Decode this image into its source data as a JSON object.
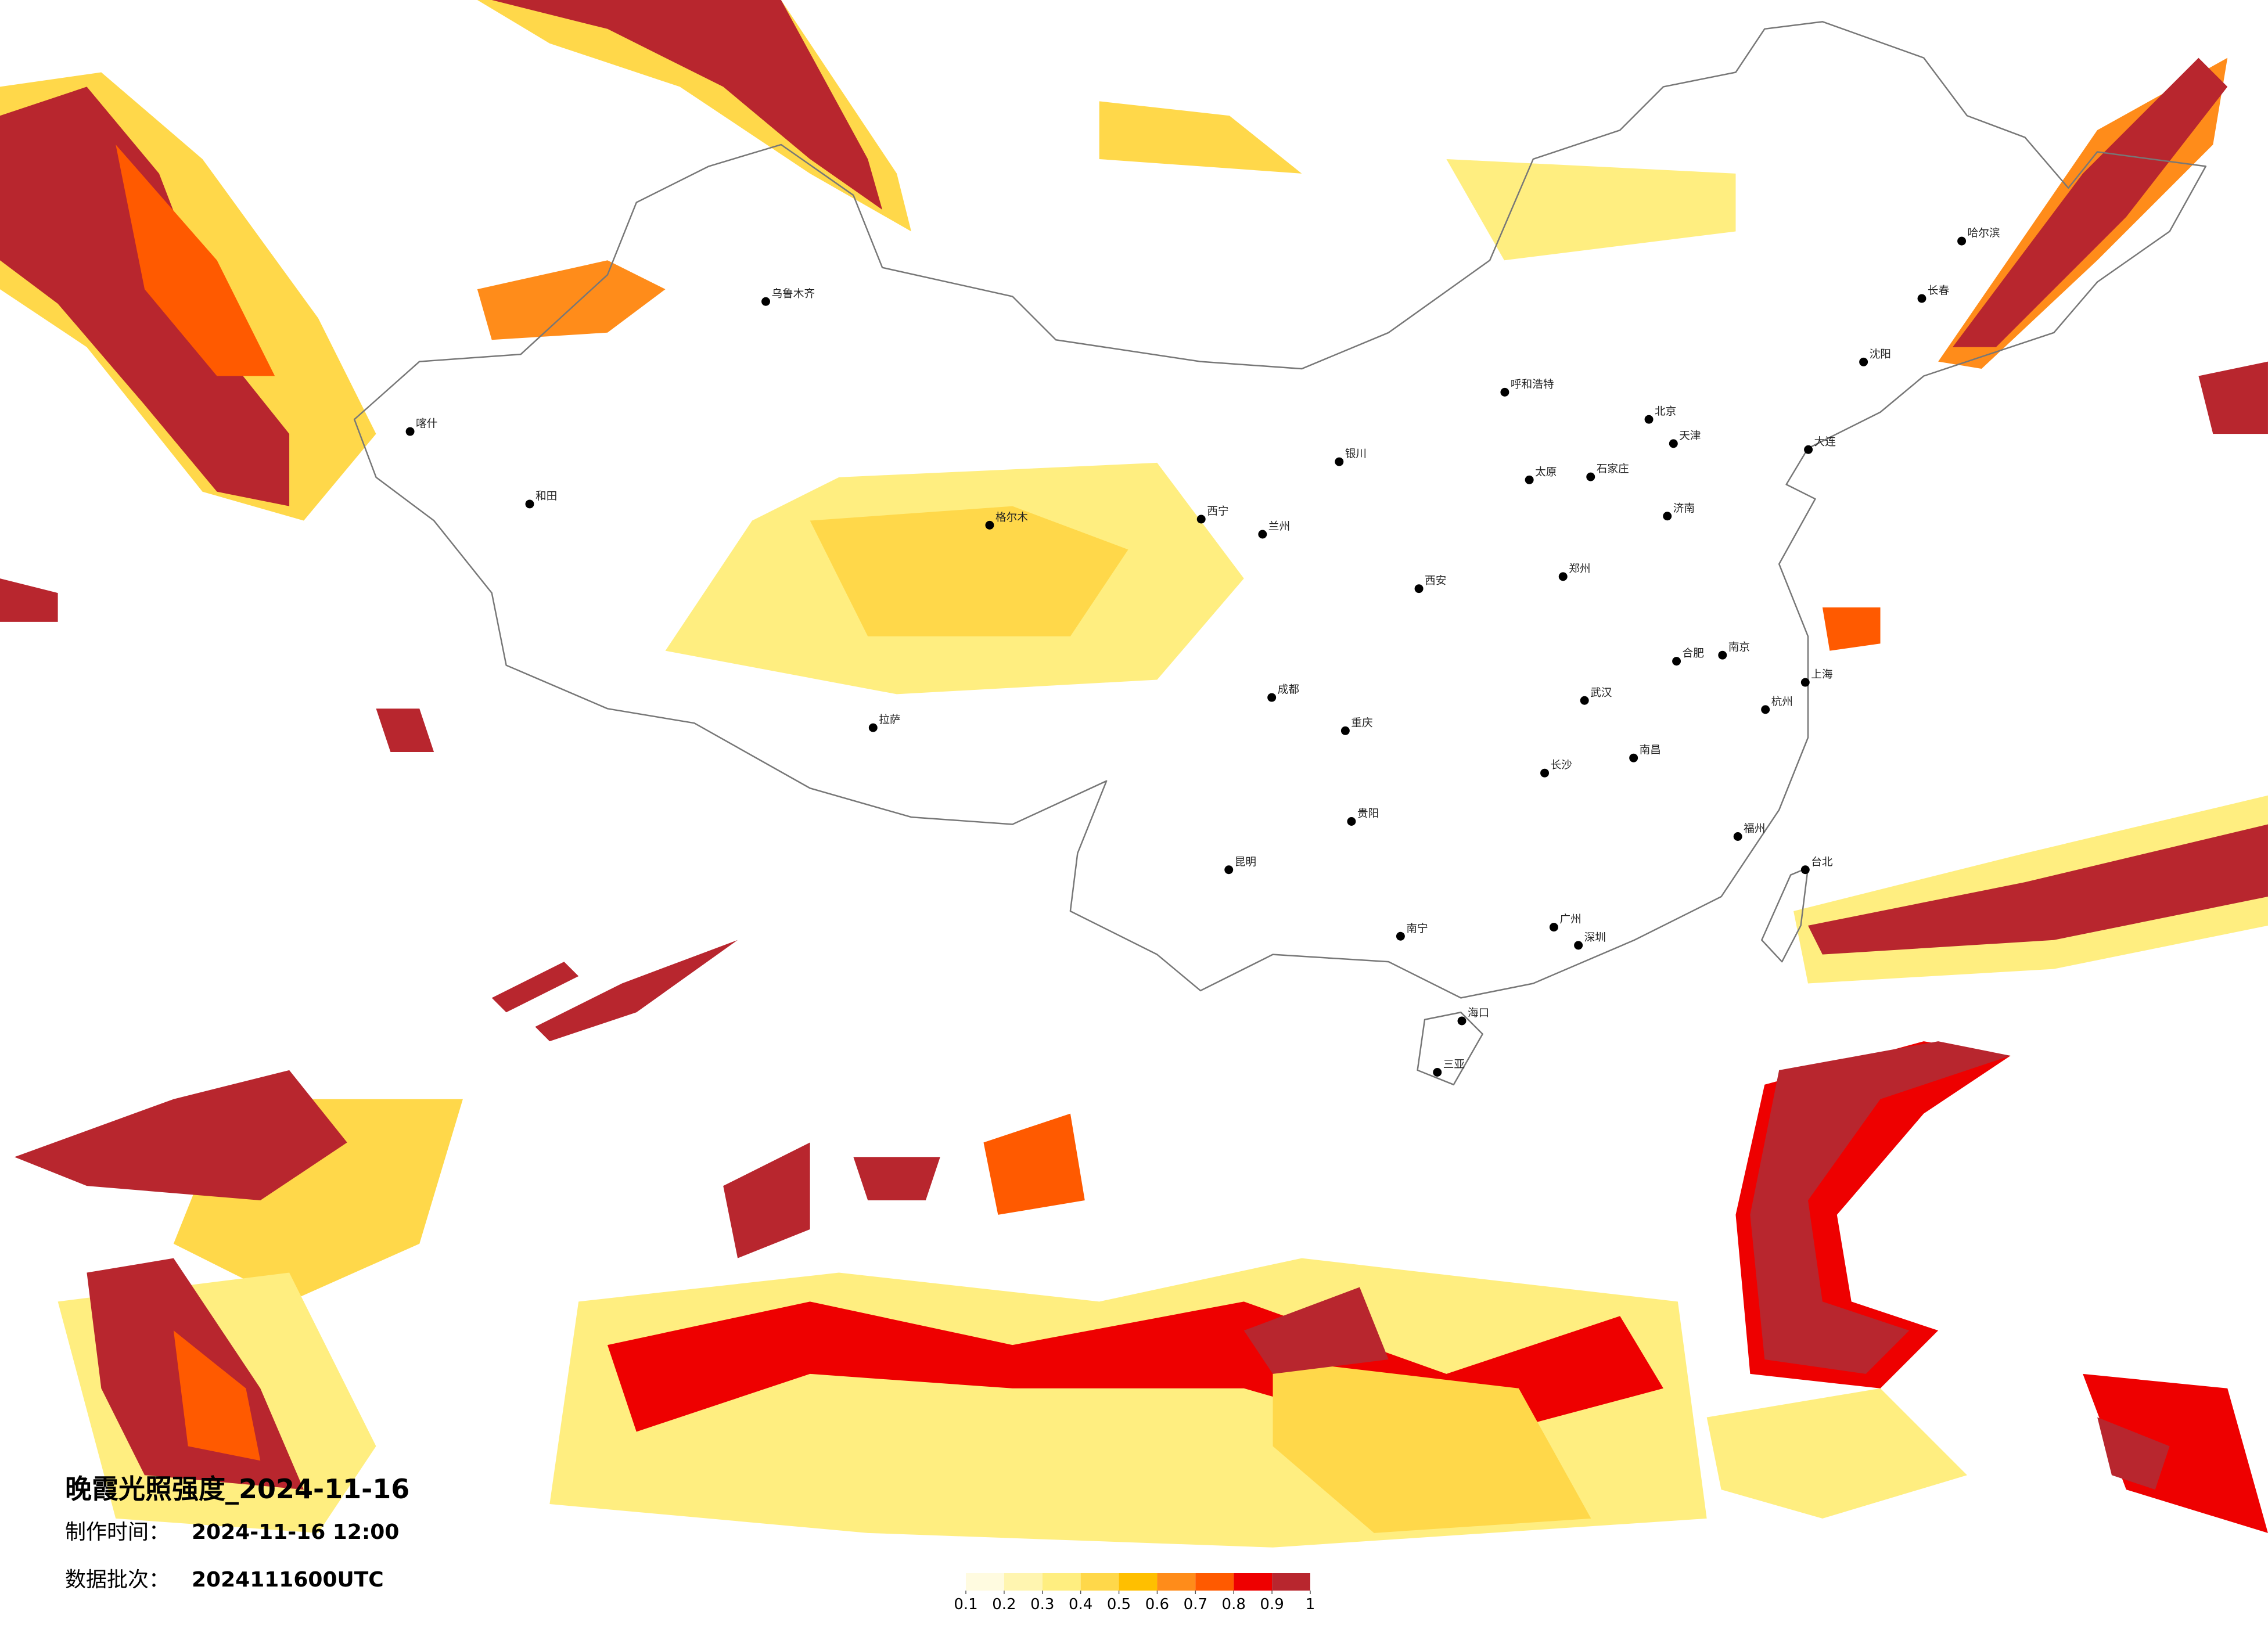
{
  "title": "晚霞光照强度_2024-11-16",
  "info": [
    {
      "label": "制作时间：",
      "value": "2024-11-16 12:00"
    },
    {
      "label": "数据批次：",
      "value": "2024111600UTC"
    }
  ],
  "colorbar": {
    "ticks": [
      0.1,
      0.2,
      0.3,
      0.4,
      0.5,
      0.6,
      0.7,
      0.8,
      0.9,
      1
    ],
    "colors": [
      "#fffbe0",
      "#fff5b0",
      "#ffee80",
      "#ffd84a",
      "#ffbf00",
      "#ff8c1a",
      "#ff5a00",
      "#ee0000",
      "#b8262e"
    ]
  },
  "cities": [
    {
      "name": "北京",
      "lon": 116.4,
      "lat": 39.9
    },
    {
      "name": "天津",
      "lon": 117.2,
      "lat": 39.1
    },
    {
      "name": "上海",
      "lon": 121.5,
      "lat": 31.2
    },
    {
      "name": "重庆",
      "lon": 106.5,
      "lat": 29.6
    },
    {
      "name": "广州",
      "lon": 113.3,
      "lat": 23.1
    },
    {
      "name": "深圳",
      "lon": 114.1,
      "lat": 22.5
    },
    {
      "name": "武汉",
      "lon": 114.3,
      "lat": 30.6
    },
    {
      "name": "成都",
      "lon": 104.1,
      "lat": 30.7
    },
    {
      "name": "西安",
      "lon": 108.9,
      "lat": 34.3
    },
    {
      "name": "南京",
      "lon": 118.8,
      "lat": 32.1
    },
    {
      "name": "杭州",
      "lon": 120.2,
      "lat": 30.3
    },
    {
      "name": "长沙",
      "lon": 113.0,
      "lat": 28.2
    },
    {
      "name": "郑州",
      "lon": 113.6,
      "lat": 34.7
    },
    {
      "name": "济南",
      "lon": 117.0,
      "lat": 36.7
    },
    {
      "name": "沈阳",
      "lon": 123.4,
      "lat": 41.8
    },
    {
      "name": "长春",
      "lon": 125.3,
      "lat": 43.9
    },
    {
      "name": "哈尔滨",
      "lon": 126.6,
      "lat": 45.8
    },
    {
      "name": "呼和浩特",
      "lon": 111.7,
      "lat": 40.8
    },
    {
      "name": "乌鲁木齐",
      "lon": 87.6,
      "lat": 43.8
    },
    {
      "name": "拉萨",
      "lon": 91.1,
      "lat": 29.7
    },
    {
      "name": "西宁",
      "lon": 101.8,
      "lat": 36.6
    },
    {
      "name": "兰州",
      "lon": 103.8,
      "lat": 36.1
    },
    {
      "name": "银川",
      "lon": 106.3,
      "lat": 38.5
    },
    {
      "name": "昆明",
      "lon": 102.7,
      "lat": 25.0
    },
    {
      "name": "贵阳",
      "lon": 106.7,
      "lat": 26.6
    },
    {
      "name": "南宁",
      "lon": 108.3,
      "lat": 22.8
    },
    {
      "name": "海口",
      "lon": 110.3,
      "lat": 20.0
    },
    {
      "name": "福州",
      "lon": 119.3,
      "lat": 26.1
    },
    {
      "name": "台北",
      "lon": 121.5,
      "lat": 25.0
    },
    {
      "name": "南昌",
      "lon": 115.9,
      "lat": 28.7
    },
    {
      "name": "合肥",
      "lon": 117.3,
      "lat": 31.9
    },
    {
      "name": "太原",
      "lon": 112.5,
      "lat": 37.9
    },
    {
      "name": "石家庄",
      "lon": 114.5,
      "lat": 38.0
    },
    {
      "name": "喀什",
      "lon": 76.0,
      "lat": 39.5
    },
    {
      "name": "和田",
      "lon": 79.9,
      "lat": 37.1
    },
    {
      "name": "格尔木",
      "lon": 94.9,
      "lat": 36.4
    },
    {
      "name": "三亚",
      "lon": 109.5,
      "lat": 18.3
    },
    {
      "name": "大连",
      "lon": 121.6,
      "lat": 38.9
    }
  ]
}
